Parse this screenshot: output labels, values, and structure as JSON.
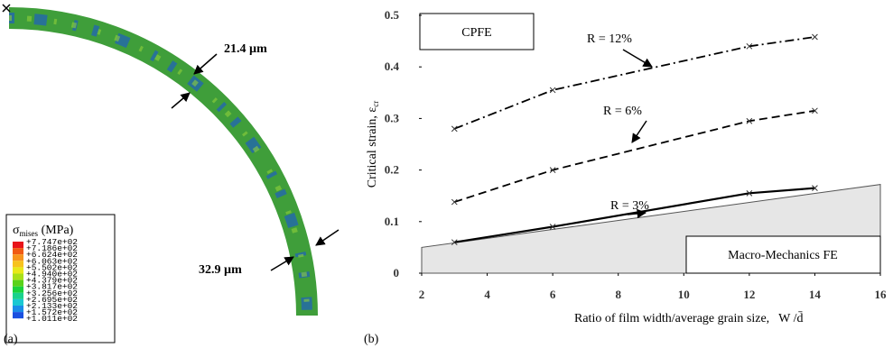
{
  "panel_a": {
    "label": "(a)",
    "annotations": [
      "21.4 µm",
      "32.9 µm"
    ],
    "legend": {
      "symbol": "σ",
      "symbol_sub": "mises",
      "unit": " (MPa)",
      "labels": [
        "+7.747e+02",
        "+7.186e+02",
        "+6.624e+02",
        "+6.063e+02",
        "+5.502e+02",
        "+4.940e+02",
        "+4.379e+02",
        "+3.817e+02",
        "+3.256e+02",
        "+2.695e+02",
        "+2.133e+02",
        "+1.572e+02",
        "+1.011e+02"
      ],
      "colors": [
        "#e8141a",
        "#f05a14",
        "#f7941d",
        "#f7c21d",
        "#e8e81a",
        "#a8e01a",
        "#5ad21a",
        "#1ad23c",
        "#1ad28c",
        "#1ac8d2",
        "#1a8ce8",
        "#1a50e0"
      ]
    }
  },
  "chart_data": {
    "type": "line",
    "label": "(b)",
    "x_label": "Ratio of film width/average grain size,",
    "x_label_symbol": "W /d̄",
    "y_label": "Critical strain, ε",
    "y_label_sub": "cr",
    "xlim": [
      2,
      16
    ],
    "xticks": [
      2,
      4,
      6,
      8,
      10,
      12,
      14,
      16
    ],
    "ylim": [
      0,
      0.5
    ],
    "yticks": [
      0,
      0.1,
      0.2,
      0.3,
      0.4,
      0.5
    ],
    "annotations": [
      "CPFE"
    ],
    "series": [
      {
        "name": "R = 12%",
        "color": "#000000",
        "style": "dashdot",
        "x": [
          3,
          6,
          12,
          14
        ],
        "values": [
          0.28,
          0.355,
          0.44,
          0.458
        ]
      },
      {
        "name": "R = 6%",
        "color": "#000000",
        "style": "dashed",
        "x": [
          3,
          6,
          12,
          14
        ],
        "values": [
          0.138,
          0.2,
          0.295,
          0.315
        ]
      },
      {
        "name": "R = 3%",
        "color": "#000000",
        "style": "solid",
        "x": [
          3,
          6,
          12,
          14
        ],
        "values": [
          0.06,
          0.09,
          0.155,
          0.165
        ]
      },
      {
        "name": "Macro-Mechanics FE",
        "color": "#e6e6e6",
        "style": "area",
        "x": [
          2,
          16
        ],
        "values": [
          0.05,
          0.172
        ]
      }
    ]
  }
}
